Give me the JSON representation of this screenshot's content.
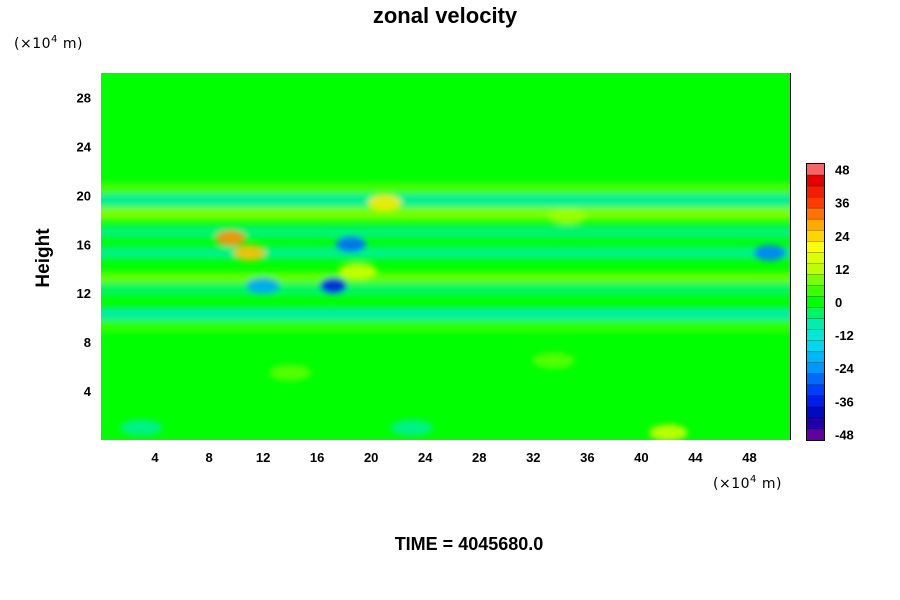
{
  "chart_data": {
    "type": "heatmap",
    "title": "zonal velocity",
    "ylabel": "Height",
    "xlabel": "",
    "x_unit_prefix": "(×10",
    "x_unit_exp": "4",
    "x_unit_suffix": " m)",
    "y_unit_prefix": "(×10",
    "y_unit_exp": "4",
    "y_unit_suffix": " m)",
    "xlim": [
      0,
      51
    ],
    "ylim": [
      0,
      30
    ],
    "x_ticks": [
      "4",
      "8",
      "12",
      "16",
      "20",
      "24",
      "28",
      "32",
      "36",
      "40",
      "44",
      "48"
    ],
    "x_tick_values": [
      4,
      8,
      12,
      16,
      20,
      24,
      28,
      32,
      36,
      40,
      44,
      48
    ],
    "y_ticks": [
      "4",
      "8",
      "12",
      "16",
      "20",
      "24",
      "28"
    ],
    "y_tick_values": [
      4,
      8,
      12,
      16,
      20,
      24,
      28
    ],
    "colorbar": {
      "min": -50,
      "max": 50,
      "interval": 4,
      "labels": [
        "48",
        "36",
        "24",
        "12",
        "0",
        "-12",
        "-24",
        "-36",
        "-48"
      ],
      "label_values": [
        48,
        36,
        24,
        12,
        0,
        -12,
        -24,
        -36,
        -48
      ]
    },
    "field_features": {
      "background_value": 0,
      "bands": [
        {
          "y": 20.5,
          "value": 6
        },
        {
          "y": 19.6,
          "value": -10
        },
        {
          "y": 18.5,
          "value": 10
        },
        {
          "y": 17.0,
          "value": -6
        },
        {
          "y": 15.3,
          "value": -8
        },
        {
          "y": 13.2,
          "value": 8
        },
        {
          "y": 12.3,
          "value": -5
        },
        {
          "y": 10.3,
          "value": -12
        },
        {
          "y": 9.3,
          "value": 4
        }
      ],
      "blobs": [
        {
          "x": 9.6,
          "y": 16.5,
          "value": 30
        },
        {
          "x": 11.0,
          "y": 15.3,
          "value": 26
        },
        {
          "x": 17.2,
          "y": 12.6,
          "value": -36
        },
        {
          "x": 18.5,
          "y": 16.0,
          "value": -28
        },
        {
          "x": 12.0,
          "y": 12.6,
          "value": -22
        },
        {
          "x": 21.0,
          "y": 19.4,
          "value": 22
        },
        {
          "x": 19.0,
          "y": 13.8,
          "value": 14
        },
        {
          "x": 49.5,
          "y": 15.3,
          "value": -26
        },
        {
          "x": 42.0,
          "y": 0.6,
          "value": 14
        },
        {
          "x": 34.5,
          "y": 18.3,
          "value": 10
        },
        {
          "x": 14.0,
          "y": 5.5,
          "value": 6
        },
        {
          "x": 33.5,
          "y": 6.5,
          "value": 6
        },
        {
          "x": 3.0,
          "y": 1.0,
          "value": -6
        },
        {
          "x": 23.0,
          "y": 1.0,
          "value": -6
        }
      ]
    }
  },
  "footer": {
    "time_text": "TIME = 4045680.0"
  }
}
